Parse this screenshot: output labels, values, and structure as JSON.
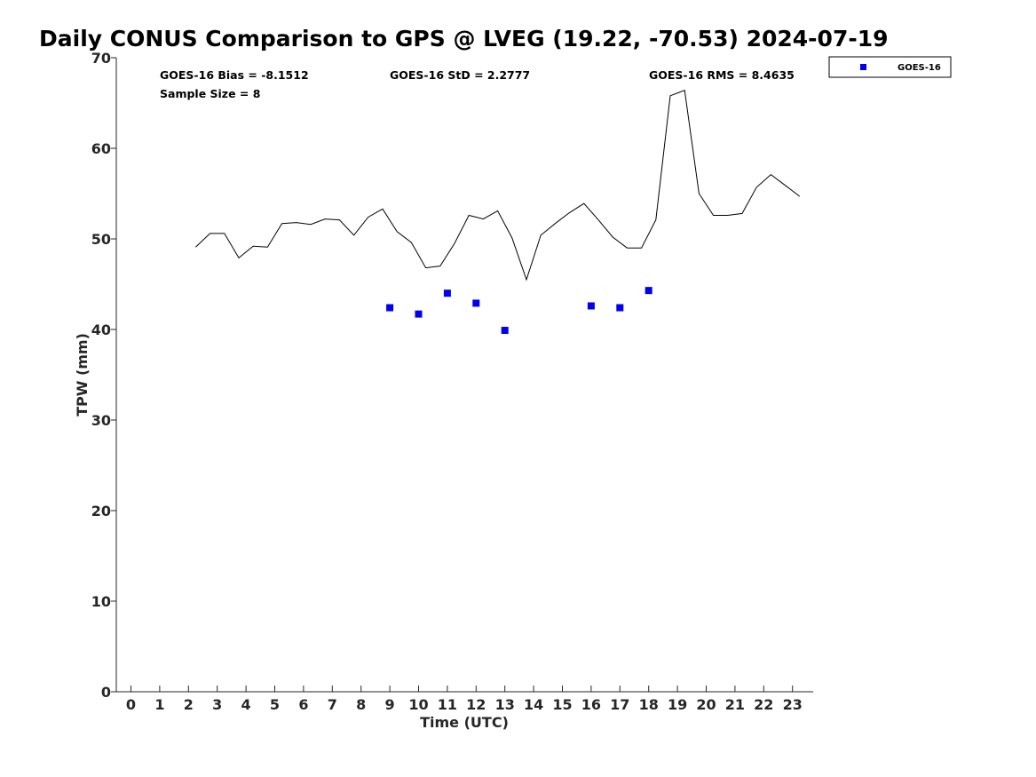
{
  "chart_data": {
    "type": "scatter",
    "title": "Daily CONUS Comparison to GPS @ LVEG (19.22, -70.53) 2024-07-19",
    "xlabel": "Time (UTC)",
    "ylabel": "TPW (mm)",
    "xlim": [
      -0.5,
      23.7
    ],
    "ylim": [
      0,
      70
    ],
    "x_ticks": [
      0,
      1,
      2,
      3,
      4,
      5,
      6,
      7,
      8,
      9,
      10,
      11,
      12,
      13,
      14,
      15,
      16,
      17,
      18,
      19,
      20,
      21,
      22,
      23
    ],
    "x_tick_labels": [
      "0",
      "1",
      "2",
      "3",
      "4",
      "5",
      "6",
      "7",
      "8",
      "9",
      "10",
      "11",
      "12",
      "13",
      "14",
      "15",
      "16",
      "17",
      "18",
      "19",
      "20",
      "21",
      "22",
      "23"
    ],
    "y_ticks": [
      0,
      10,
      20,
      30,
      40,
      50,
      60,
      70
    ],
    "y_tick_labels": [
      "0",
      "10",
      "20",
      "30",
      "40",
      "50",
      "60",
      "70"
    ],
    "grid": false,
    "legend_position": "top-right-outside",
    "annotations": {
      "bias": "GOES-16 Bias = -8.1512",
      "sample_size": "Sample Size = 8",
      "std": "GOES-16 StD = 2.2777",
      "rms": "GOES-16 RMS = 8.4635"
    },
    "series": [
      {
        "kind": "line",
        "color": "#000000",
        "x": [
          2.25,
          2.75,
          3.25,
          3.75,
          4.25,
          4.75,
          5.25,
          5.75,
          6.25,
          6.75,
          7.25,
          7.75,
          8.25,
          8.75,
          9.25,
          9.75,
          10.25,
          10.75,
          11.25,
          11.75,
          12.25,
          12.75,
          13.25,
          13.75,
          14.25,
          14.75,
          15.25,
          15.75,
          16.25,
          16.75,
          17.25,
          17.75,
          18.25,
          18.75,
          19.25,
          19.75,
          20.25,
          20.75,
          21.25,
          21.75,
          22.25,
          22.75,
          23.25
        ],
        "y": [
          49.1,
          50.6,
          50.6,
          47.9,
          49.2,
          49.1,
          51.7,
          51.8,
          51.6,
          52.2,
          52.1,
          50.4,
          52.4,
          53.3,
          50.8,
          49.6,
          46.8,
          47.0,
          49.5,
          52.6,
          52.2,
          53.1,
          50.1,
          45.5,
          50.4,
          51.7,
          52.9,
          53.9,
          52.1,
          50.2,
          49.0,
          49.0,
          52.1,
          65.8,
          66.4,
          55.0,
          52.6,
          52.6,
          52.8,
          55.7,
          57.1,
          55.9,
          54.7
        ]
      },
      {
        "name": "GOES-16",
        "kind": "markers",
        "color": "#0000ee",
        "x": [
          9,
          10,
          11,
          12,
          13,
          16,
          17,
          18
        ],
        "y": [
          42.4,
          41.7,
          44.0,
          42.9,
          39.9,
          42.6,
          42.4,
          44.3
        ]
      }
    ]
  }
}
